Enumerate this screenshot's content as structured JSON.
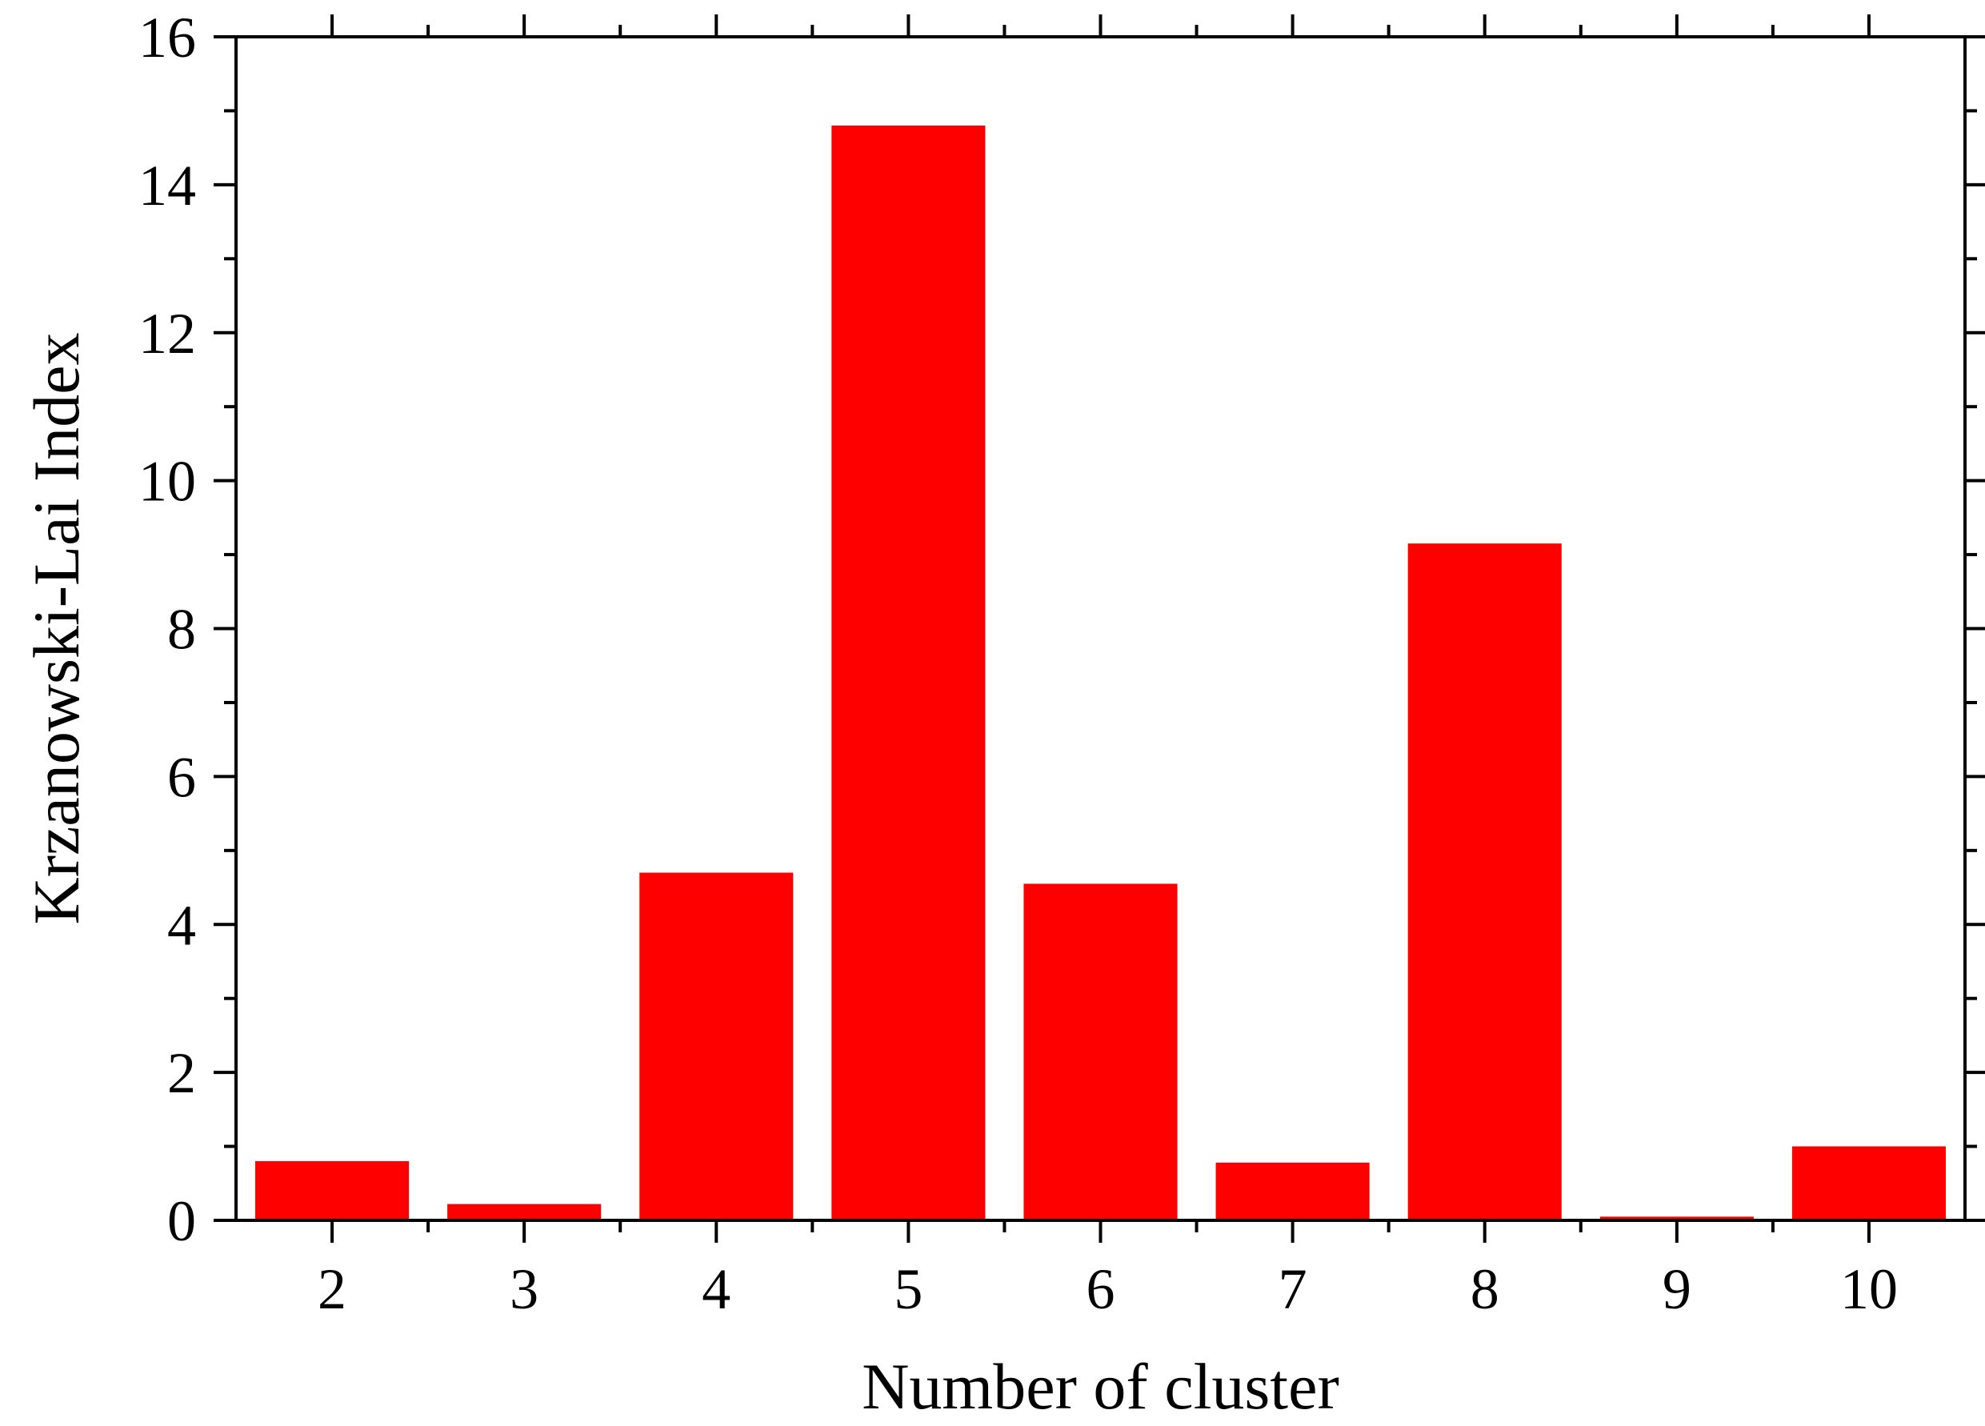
{
  "chart_data": {
    "type": "bar",
    "title": "",
    "xlabel": "Number of cluster",
    "ylabel": "Krzanowski-Lai Index",
    "categories": [
      "2",
      "3",
      "4",
      "5",
      "6",
      "7",
      "8",
      "9",
      "10"
    ],
    "values": [
      0.8,
      0.22,
      4.7,
      14.8,
      4.55,
      0.78,
      9.15,
      0.05,
      1.0
    ],
    "ylim": [
      0,
      16
    ],
    "yticks": [
      "0",
      "2",
      "4",
      "6",
      "8",
      "10",
      "12",
      "14",
      "16"
    ],
    "grid": false,
    "legend": "none",
    "bar_color": "#ff0000"
  }
}
